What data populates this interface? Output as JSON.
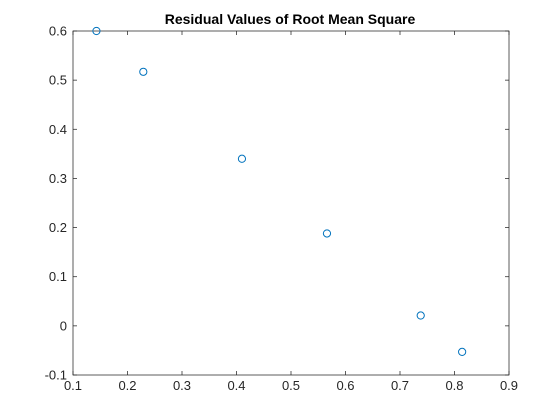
{
  "chart_data": {
    "type": "scatter",
    "title": "Residual Values of Root Mean Square",
    "xlabel": "",
    "ylabel": "",
    "xlim": [
      0.1,
      0.9
    ],
    "ylim": [
      -0.1,
      0.6
    ],
    "xticks": [
      0.1,
      0.2,
      0.3,
      0.4,
      0.5,
      0.6,
      0.7,
      0.8,
      0.9
    ],
    "yticks": [
      -0.1,
      0,
      0.1,
      0.2,
      0.3,
      0.4,
      0.5,
      0.6
    ],
    "xtick_labels": [
      "0.1",
      "0.2",
      "0.3",
      "0.4",
      "0.5",
      "0.6",
      "0.7",
      "0.8",
      "0.9"
    ],
    "ytick_labels": [
      "-0.1",
      "0",
      "0.1",
      "0.2",
      "0.3",
      "0.4",
      "0.5",
      "0.6"
    ],
    "grid": false,
    "marker_color": "#0072BD",
    "series": [
      {
        "x": [
          0.143,
          0.229,
          0.41,
          0.566,
          0.738,
          0.814
        ],
        "y": [
          0.6,
          0.517,
          0.34,
          0.188,
          0.021,
          -0.053
        ]
      }
    ]
  }
}
